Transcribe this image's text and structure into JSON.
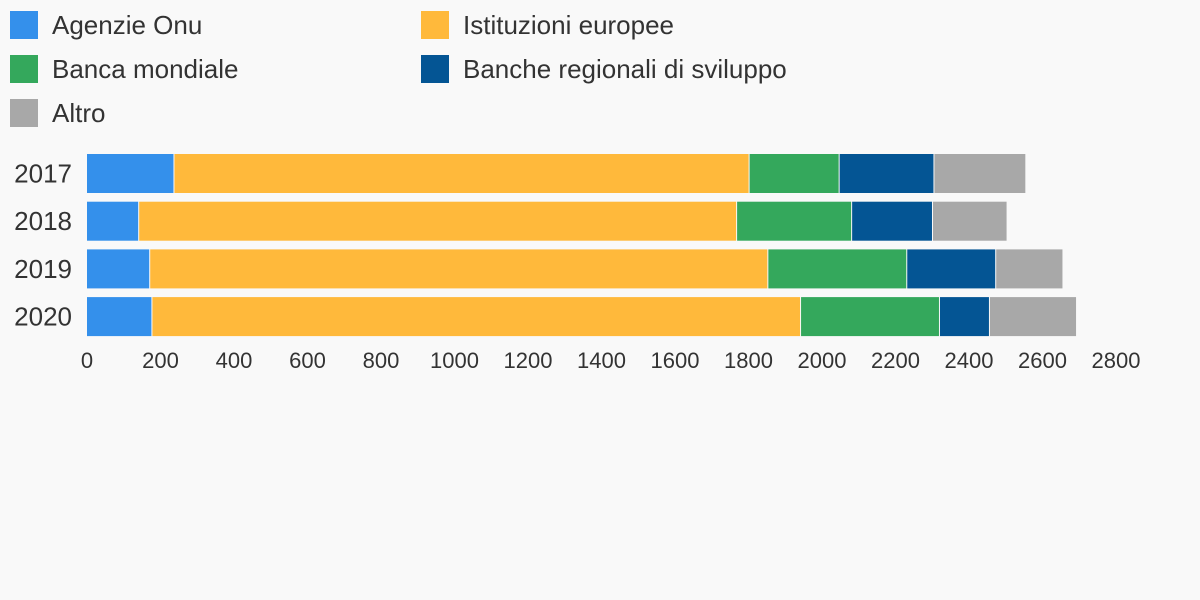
{
  "chart_data": {
    "type": "bar",
    "orientation": "horizontal",
    "stacked": true,
    "categories": [
      "2017",
      "2018",
      "2019",
      "2020"
    ],
    "series": [
      {
        "name": "Agenzie Onu",
        "color": "#3490eb",
        "values": [
          238,
          142,
          172,
          178
        ]
      },
      {
        "name": "Istituzioni europee",
        "color": "#ffb93b",
        "values": [
          1565,
          1627,
          1682,
          1765
        ]
      },
      {
        "name": "Banca mondiale",
        "color": "#34a85c",
        "values": [
          245,
          313,
          378,
          378
        ]
      },
      {
        "name": "Banche regionali di sviluppo",
        "color": "#045594",
        "values": [
          258,
          220,
          242,
          136
        ]
      },
      {
        "name": "Altro",
        "color": "#a8a8a8",
        "values": [
          250,
          203,
          183,
          237
        ]
      }
    ],
    "xlim": [
      0,
      2800
    ],
    "xticks": [
      "0",
      "200",
      "400",
      "600",
      "800",
      "1000",
      "1200",
      "1400",
      "1600",
      "1800",
      "2000",
      "2200",
      "2400",
      "2600",
      "2800"
    ],
    "grid": false,
    "legend_position": "top-left"
  }
}
